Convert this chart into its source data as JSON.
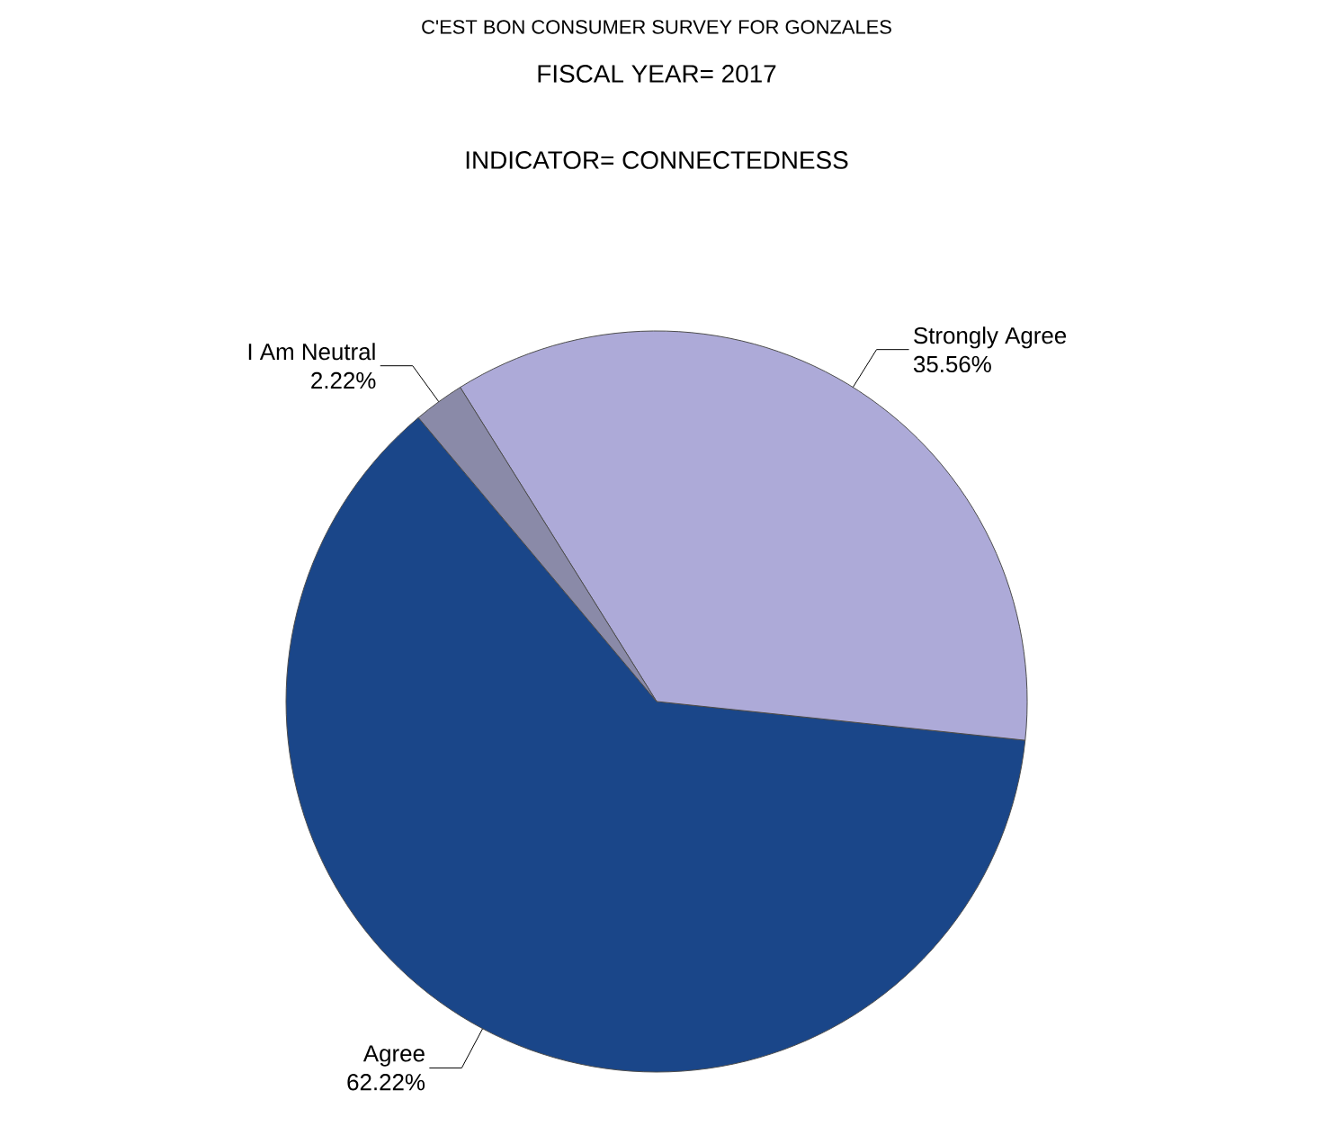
{
  "chart_data": {
    "type": "pie",
    "title": "C'EST BON CONSUMER SURVEY FOR GONZALES",
    "subtitle": "FISCAL YEAR= 2017",
    "annotations": [
      "INDICATOR= CONNECTEDNESS"
    ],
    "categories": [
      "Agree",
      "Strongly Agree",
      "I Am Neutral"
    ],
    "values": [
      62.22,
      35.56,
      2.22
    ],
    "value_labels": [
      "62.22%",
      "35.56%",
      "2.22%"
    ],
    "colors": [
      "#1a4689",
      "#adaad8",
      "#8a8aa8"
    ]
  }
}
